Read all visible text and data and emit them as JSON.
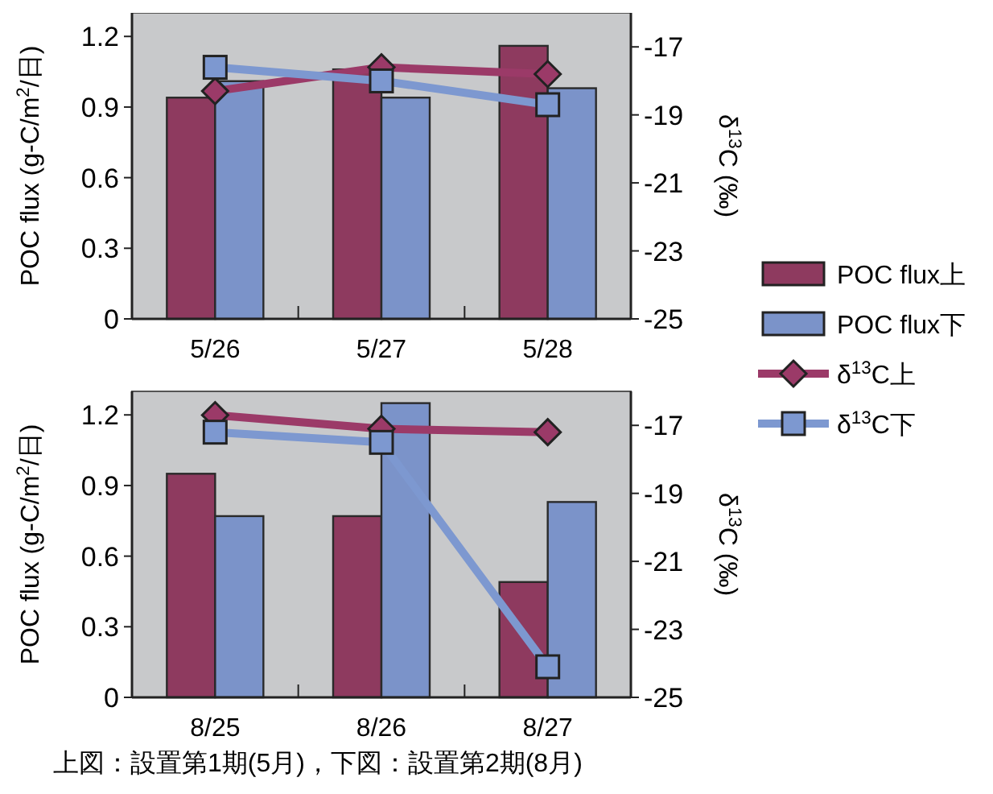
{
  "chart_data": [
    {
      "type": "bar",
      "categories": [
        "5/26",
        "5/27",
        "5/28"
      ],
      "ylabel": "POC flux (g-C/m$^{2}$/日)",
      "y2label": "δ$^{13}$C (‰)",
      "ylim": [
        0,
        1.3
      ],
      "yticks": [
        0,
        0.3,
        0.6,
        0.9,
        1.2
      ],
      "y2lim": [
        -25,
        -16
      ],
      "y2ticks": [
        -25,
        -23,
        -21,
        -19,
        -17
      ],
      "legend": "right",
      "grid": false,
      "series": [
        {
          "name": "POC flux上",
          "color": "#8e3a5f",
          "values": [
            0.94,
            1.06,
            1.16
          ]
        },
        {
          "name": "POC flux下",
          "color": "#7b93c9",
          "values": [
            1.01,
            0.94,
            0.98
          ]
        },
        {
          "name": "δ$^{13}$C上",
          "type": "line",
          "axis": "y2",
          "marker": "diamond",
          "color": "#9b3a68",
          "values": [
            -18.3,
            -17.6,
            -17.8
          ]
        },
        {
          "name": "δ$^{13}$C下",
          "type": "line",
          "axis": "y2",
          "marker": "square",
          "color": "#7d98d0",
          "values": [
            -17.6,
            -18.0,
            -18.7
          ]
        }
      ]
    },
    {
      "type": "bar",
      "categories": [
        "8/25",
        "8/26",
        "8/27"
      ],
      "ylabel": "POC flux (g-C/m$^{2}$/日)",
      "y2label": "δ$^{13}$C (‰)",
      "ylim": [
        0,
        1.3
      ],
      "yticks": [
        0,
        0.3,
        0.6,
        0.9,
        1.2
      ],
      "y2lim": [
        -25,
        -16
      ],
      "y2ticks": [
        -25,
        -23,
        -21,
        -19,
        -17
      ],
      "grid": false,
      "annotations": [
        "上図：設置第1期(5月)，下図：設置第2期(8月)"
      ],
      "series": [
        {
          "color": "#8e3a5f",
          "values": [
            0.95,
            0.77,
            0.49
          ]
        },
        {
          "color": "#7b93c9",
          "values": [
            0.77,
            1.25,
            0.83
          ]
        },
        {
          "type": "line",
          "axis": "y2",
          "marker": "diamond",
          "color": "#9b3a68",
          "values": [
            -16.7,
            -17.1,
            -17.2
          ]
        },
        {
          "type": "line",
          "axis": "y2",
          "marker": "square",
          "color": "#7d98d0",
          "values": [
            -17.2,
            -17.5,
            -24.1
          ]
        }
      ]
    }
  ]
}
